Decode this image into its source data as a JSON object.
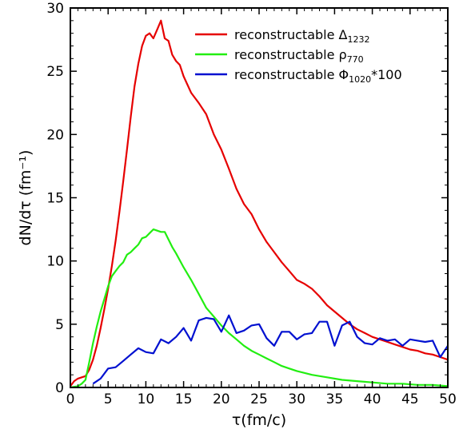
{
  "chart_data": {
    "type": "line",
    "title": "",
    "xlabel": "τ(fm/c)",
    "ylabel": "dN/dτ  (fm⁻¹)",
    "xlim": [
      0,
      50
    ],
    "ylim": [
      0,
      30
    ],
    "x_ticks": [
      0,
      5,
      10,
      15,
      20,
      25,
      30,
      35,
      40,
      45,
      50
    ],
    "y_ticks": [
      0,
      5,
      10,
      15,
      20,
      25,
      30
    ],
    "grid": false,
    "legend_position": "top-right",
    "series": [
      {
        "name": "reconstructable Δ1232",
        "legend": {
          "base": "reconstructable ",
          "symbol": "Δ",
          "sub": "1232",
          "suffix": ""
        },
        "color": "#e60000",
        "x": [
          0,
          0.5,
          1,
          1.5,
          2,
          2.5,
          3,
          3.5,
          4,
          4.5,
          5,
          5.5,
          6,
          6.5,
          7,
          7.5,
          8,
          8.5,
          9,
          9.5,
          10,
          10.5,
          11,
          11.5,
          12,
          12.5,
          13,
          13.5,
          14,
          14.5,
          15,
          16,
          17,
          18,
          19,
          20,
          21,
          22,
          23,
          24,
          25,
          26,
          27,
          28,
          29,
          30,
          31,
          32,
          33,
          34,
          35,
          36,
          37,
          38,
          39,
          40,
          41,
          42,
          43,
          44,
          45,
          46,
          47,
          48,
          49,
          50
        ],
        "values": [
          0.1,
          0.5,
          0.7,
          0.8,
          0.9,
          1.4,
          2.2,
          3.3,
          4.7,
          6.2,
          7.8,
          9.6,
          11.6,
          13.9,
          16.3,
          18.8,
          21.4,
          23.8,
          25.6,
          27.0,
          27.8,
          28.0,
          27.6,
          28.3,
          29.0,
          27.6,
          27.4,
          26.3,
          25.8,
          25.5,
          24.6,
          23.3,
          22.5,
          21.6,
          20.0,
          18.8,
          17.3,
          15.7,
          14.5,
          13.7,
          12.5,
          11.5,
          10.7,
          9.9,
          9.2,
          8.5,
          8.2,
          7.8,
          7.2,
          6.5,
          6.0,
          5.5,
          5.0,
          4.6,
          4.3,
          4.0,
          3.8,
          3.6,
          3.4,
          3.2,
          3.0,
          2.9,
          2.7,
          2.6,
          2.4,
          2.2
        ]
      },
      {
        "name": "reconstructable ρ770",
        "legend": {
          "base": "reconstructable ",
          "symbol": "ρ",
          "sub": "770",
          "suffix": ""
        },
        "color": "#22ee11",
        "x": [
          0,
          1,
          1.5,
          2,
          2.5,
          3,
          3.5,
          4,
          4.5,
          5,
          5.5,
          6,
          6.5,
          7,
          7.5,
          8,
          8.5,
          9,
          9.5,
          10,
          10.5,
          11,
          11.5,
          12,
          12.5,
          13,
          13.5,
          14,
          15,
          16,
          17,
          18,
          19,
          20,
          21,
          22,
          23,
          24,
          25,
          26,
          27,
          28,
          29,
          30,
          32,
          34,
          36,
          38,
          40,
          42,
          44,
          46,
          48,
          50
        ],
        "values": [
          0,
          0.1,
          0.3,
          0.6,
          2.0,
          3.5,
          4.8,
          6.0,
          7.0,
          8.0,
          8.8,
          9.2,
          9.6,
          9.9,
          10.5,
          10.7,
          11.0,
          11.3,
          11.8,
          11.9,
          12.2,
          12.5,
          12.4,
          12.3,
          12.3,
          11.7,
          11.1,
          10.6,
          9.5,
          8.5,
          7.4,
          6.3,
          5.6,
          4.9,
          4.3,
          3.8,
          3.3,
          2.9,
          2.6,
          2.3,
          2.0,
          1.7,
          1.5,
          1.3,
          1.0,
          0.8,
          0.6,
          0.5,
          0.4,
          0.3,
          0.3,
          0.2,
          0.2,
          0.1
        ]
      },
      {
        "name": "reconstructable Φ1020*100",
        "legend": {
          "base": "reconstructable ",
          "symbol": "Φ",
          "sub": "1020",
          "suffix": "*100"
        },
        "color": "#0010d0",
        "x": [
          3,
          4,
          5,
          6,
          7,
          8,
          9,
          10,
          11,
          12,
          13,
          14,
          15,
          16,
          17,
          18,
          19,
          20,
          21,
          22,
          23,
          24,
          25,
          26,
          27,
          28,
          29,
          30,
          31,
          32,
          33,
          34,
          35,
          36,
          37,
          38,
          39,
          40,
          41,
          42,
          43,
          44,
          45,
          46,
          47,
          48,
          49,
          50
        ],
        "values": [
          0.3,
          0.7,
          1.5,
          1.6,
          2.1,
          2.6,
          3.1,
          2.8,
          2.7,
          3.8,
          3.5,
          4.0,
          4.7,
          3.7,
          5.3,
          5.5,
          5.4,
          4.4,
          5.7,
          4.3,
          4.5,
          4.9,
          5.0,
          3.9,
          3.3,
          4.4,
          4.4,
          3.8,
          4.2,
          4.3,
          5.2,
          5.2,
          3.3,
          4.9,
          5.2,
          4.0,
          3.5,
          3.4,
          3.9,
          3.7,
          3.8,
          3.3,
          3.8,
          3.7,
          3.6,
          3.7,
          2.4,
          3.3
        ]
      }
    ]
  }
}
